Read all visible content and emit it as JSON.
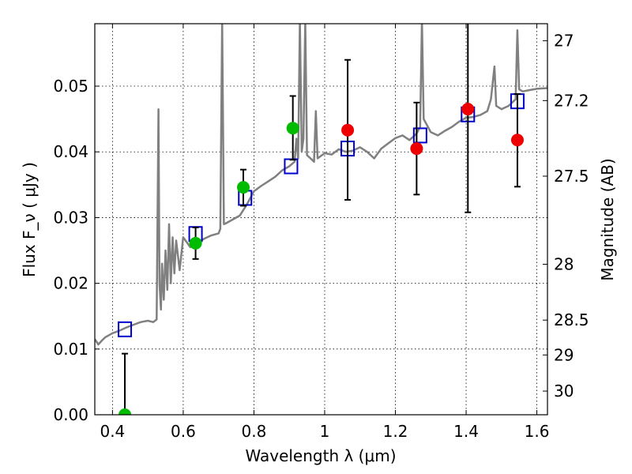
{
  "chart_data": {
    "type": "scatter",
    "xlabel": "Wavelength  λ (μm)",
    "ylabel": "Flux  F_ν  ( μJy )",
    "y2label": "Magnitude (AB)",
    "xlim": [
      0.35,
      1.63
    ],
    "ylim": [
      0.0,
      0.0595
    ],
    "xticks": [
      0.4,
      0.6,
      0.8,
      1.0,
      1.2,
      1.4,
      1.6
    ],
    "xtick_labels": [
      "0.4",
      "0.6",
      "0.8",
      "1",
      "1.2",
      "1.4",
      "1.6"
    ],
    "yticks": [
      0.0,
      0.01,
      0.02,
      0.03,
      0.04,
      0.05
    ],
    "ytick_labels": [
      "0.00",
      "0.01",
      "0.02",
      "0.03",
      "0.04",
      "0.05"
    ],
    "y2_ticks": [
      {
        "flux": 0.0569,
        "label": "27"
      },
      {
        "flux": 0.0478,
        "label": "27.2"
      },
      {
        "flux": 0.0363,
        "label": "27.5"
      },
      {
        "flux": 0.0229,
        "label": "28"
      },
      {
        "flux": 0.0144,
        "label": "28.5"
      },
      {
        "flux": 0.0091,
        "label": "29"
      },
      {
        "flux": 0.0036,
        "label": "30"
      }
    ],
    "grid": true,
    "colors": {
      "model": "#808080",
      "synthetic": "#0000cc",
      "green": "#00bb00",
      "red": "#ee0000",
      "errorbar": "#000000"
    },
    "model_spectrum": [
      [
        0.35,
        0.0115
      ],
      [
        0.36,
        0.0107
      ],
      [
        0.37,
        0.0113
      ],
      [
        0.38,
        0.0118
      ],
      [
        0.4,
        0.0124
      ],
      [
        0.42,
        0.0128
      ],
      [
        0.44,
        0.0133
      ],
      [
        0.46,
        0.0137
      ],
      [
        0.48,
        0.0141
      ],
      [
        0.5,
        0.0143
      ],
      [
        0.515,
        0.0141
      ],
      [
        0.525,
        0.0145
      ],
      [
        0.53,
        0.0465
      ],
      [
        0.533,
        0.02
      ],
      [
        0.537,
        0.016
      ],
      [
        0.54,
        0.023
      ],
      [
        0.545,
        0.0175
      ],
      [
        0.55,
        0.025
      ],
      [
        0.555,
        0.019
      ],
      [
        0.56,
        0.029
      ],
      [
        0.565,
        0.02
      ],
      [
        0.57,
        0.027
      ],
      [
        0.575,
        0.0215
      ],
      [
        0.58,
        0.0265
      ],
      [
        0.59,
        0.022
      ],
      [
        0.6,
        0.027
      ],
      [
        0.62,
        0.0255
      ],
      [
        0.64,
        0.0262
      ],
      [
        0.66,
        0.0268
      ],
      [
        0.68,
        0.0273
      ],
      [
        0.7,
        0.0276
      ],
      [
        0.705,
        0.0283
      ],
      [
        0.71,
        0.06
      ],
      [
        0.715,
        0.029
      ],
      [
        0.72,
        0.0291
      ],
      [
        0.74,
        0.0297
      ],
      [
        0.76,
        0.0303
      ],
      [
        0.78,
        0.032
      ],
      [
        0.8,
        0.034
      ],
      [
        0.82,
        0.0348
      ],
      [
        0.84,
        0.0355
      ],
      [
        0.86,
        0.0362
      ],
      [
        0.88,
        0.0372
      ],
      [
        0.9,
        0.0378
      ],
      [
        0.915,
        0.0385
      ],
      [
        0.92,
        0.042
      ],
      [
        0.925,
        0.039
      ],
      [
        0.93,
        0.06
      ],
      [
        0.935,
        0.04
      ],
      [
        0.94,
        0.042
      ],
      [
        0.945,
        0.06
      ],
      [
        0.95,
        0.0395
      ],
      [
        0.96,
        0.039
      ],
      [
        0.97,
        0.0385
      ],
      [
        0.975,
        0.0462
      ],
      [
        0.98,
        0.039
      ],
      [
        1.0,
        0.0398
      ],
      [
        1.02,
        0.0396
      ],
      [
        1.04,
        0.0404
      ],
      [
        1.06,
        0.04
      ],
      [
        1.08,
        0.0402
      ],
      [
        1.1,
        0.0407
      ],
      [
        1.12,
        0.04
      ],
      [
        1.14,
        0.039
      ],
      [
        1.16,
        0.0405
      ],
      [
        1.18,
        0.0413
      ],
      [
        1.2,
        0.0421
      ],
      [
        1.22,
        0.0425
      ],
      [
        1.24,
        0.0418
      ],
      [
        1.26,
        0.0428
      ],
      [
        1.27,
        0.0438
      ],
      [
        1.275,
        0.06
      ],
      [
        1.28,
        0.045
      ],
      [
        1.3,
        0.043
      ],
      [
        1.32,
        0.0425
      ],
      [
        1.34,
        0.0432
      ],
      [
        1.36,
        0.0438
      ],
      [
        1.38,
        0.0446
      ],
      [
        1.4,
        0.0452
      ],
      [
        1.42,
        0.0453
      ],
      [
        1.44,
        0.0456
      ],
      [
        1.46,
        0.0462
      ],
      [
        1.47,
        0.048
      ],
      [
        1.48,
        0.053
      ],
      [
        1.485,
        0.047
      ],
      [
        1.5,
        0.0465
      ],
      [
        1.52,
        0.047
      ],
      [
        1.54,
        0.048
      ],
      [
        1.545,
        0.0585
      ],
      [
        1.55,
        0.0495
      ],
      [
        1.56,
        0.0492
      ],
      [
        1.58,
        0.0494
      ],
      [
        1.6,
        0.0496
      ],
      [
        1.63,
        0.0497
      ]
    ],
    "synthetic_photometry": [
      {
        "x": 0.435,
        "y": 0.013
      },
      {
        "x": 0.635,
        "y": 0.0275
      },
      {
        "x": 0.775,
        "y": 0.033
      },
      {
        "x": 0.905,
        "y": 0.0378
      },
      {
        "x": 1.065,
        "y": 0.0405
      },
      {
        "x": 1.27,
        "y": 0.0425
      },
      {
        "x": 1.405,
        "y": 0.0457
      },
      {
        "x": 1.545,
        "y": 0.0477
      }
    ],
    "observed": [
      {
        "x": 0.435,
        "y": 0.0,
        "yerr_low": 0.0,
        "yerr_high": 0.0093,
        "color": "green"
      },
      {
        "x": 0.635,
        "y": 0.0261,
        "yerr_low": 0.0237,
        "yerr_high": 0.0285,
        "color": "green"
      },
      {
        "x": 0.77,
        "y": 0.0346,
        "yerr_low": 0.0318,
        "yerr_high": 0.0373,
        "color": "green"
      },
      {
        "x": 0.91,
        "y": 0.0436,
        "yerr_low": 0.0388,
        "yerr_high": 0.0485,
        "color": "green"
      },
      {
        "x": 1.065,
        "y": 0.0433,
        "yerr_low": 0.0327,
        "yerr_high": 0.054,
        "color": "red"
      },
      {
        "x": 1.26,
        "y": 0.0405,
        "yerr_low": 0.0335,
        "yerr_high": 0.0475,
        "color": "red"
      },
      {
        "x": 1.405,
        "y": 0.0465,
        "yerr_low": 0.0308,
        "yerr_high": 0.06,
        "color": "red"
      },
      {
        "x": 1.545,
        "y": 0.0418,
        "yerr_low": 0.0347,
        "yerr_high": 0.0488,
        "color": "red"
      }
    ]
  }
}
